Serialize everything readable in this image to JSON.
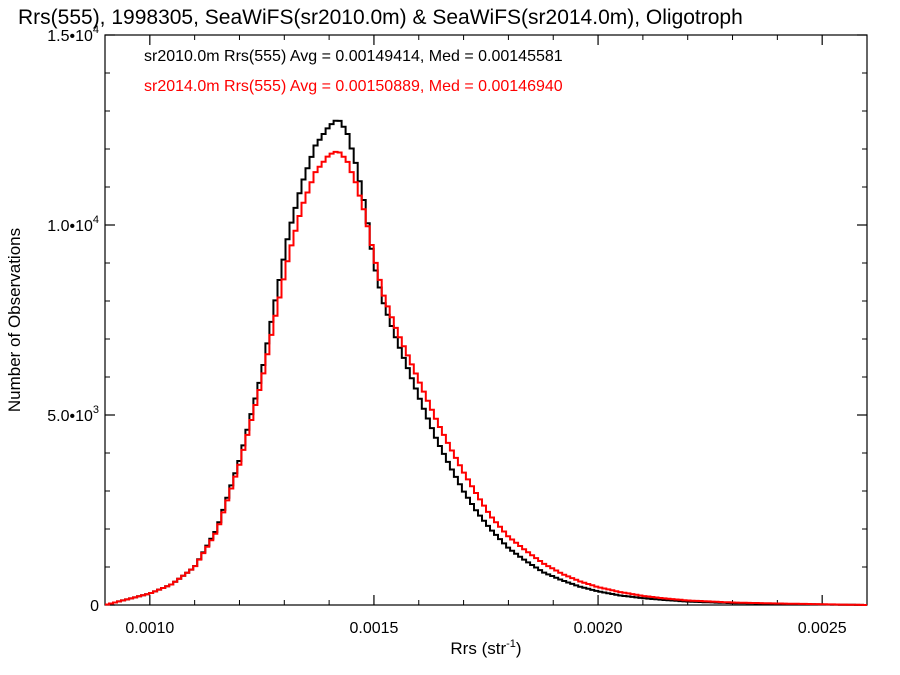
{
  "chart_data": {
    "type": "line",
    "title": "Rrs(555), 1998305, SeaWiFS(sr2010.0m) & SeaWiFS(sr2014.0m), Oligotroph",
    "xlabel": "Rrs (str",
    "xlabel_sup": "-1",
    "xlabel_end": ")",
    "ylabel": "Number of Observations",
    "xlim": [
      0.0009,
      0.0026
    ],
    "ylim": [
      0,
      15000
    ],
    "grid": false,
    "legend_position": "top-left",
    "x_ticks": [
      {
        "value": 0.001,
        "label": "0.0010"
      },
      {
        "value": 0.0015,
        "label": "0.0015"
      },
      {
        "value": 0.002,
        "label": "0.0020"
      },
      {
        "value": 0.0025,
        "label": "0.0025"
      }
    ],
    "y_ticks": [
      {
        "value": 0,
        "base": "0",
        "exp": ""
      },
      {
        "value": 5000,
        "base": "5.0•10",
        "exp": "3"
      },
      {
        "value": 10000,
        "base": "1.0•10",
        "exp": "4"
      },
      {
        "value": 15000,
        "base": "1.5•10",
        "exp": "4"
      }
    ],
    "series": [
      {
        "name": "sr2010.0m",
        "legend": "sr2010.0m Rrs(555) Avg = 0.00149414, Med = 0.00145581",
        "color": "#000000",
        "x": [
          0.0009,
          0.00095,
          0.001,
          0.00105,
          0.0011,
          0.00115,
          0.0012,
          0.00125,
          0.00128,
          0.00131,
          0.00134,
          0.00137,
          0.0014,
          0.00142,
          0.00144,
          0.00146,
          0.00148,
          0.0015,
          0.00152,
          0.00155,
          0.00158,
          0.00161,
          0.00164,
          0.00167,
          0.0017,
          0.00173,
          0.00176,
          0.0018,
          0.00184,
          0.00188,
          0.00192,
          0.00196,
          0.002,
          0.00205,
          0.0021,
          0.00215,
          0.0022,
          0.0023,
          0.0024,
          0.0025,
          0.0026
        ],
        "y": [
          0,
          150,
          300,
          550,
          1000,
          2000,
          3800,
          6100,
          8000,
          9800,
          11100,
          12100,
          12600,
          12800,
          12450,
          11600,
          10500,
          9000,
          8000,
          7000,
          6100,
          5200,
          4350,
          3650,
          3000,
          2450,
          2000,
          1500,
          1150,
          850,
          650,
          480,
          360,
          250,
          180,
          130,
          90,
          50,
          30,
          15,
          0
        ]
      },
      {
        "name": "sr2014.0m",
        "legend": "sr2014.0m Rrs(555) Avg = 0.00150889, Med = 0.00146940",
        "color": "#ff0000",
        "x": [
          0.0009,
          0.00095,
          0.001,
          0.00105,
          0.0011,
          0.00115,
          0.0012,
          0.00125,
          0.00128,
          0.00131,
          0.00134,
          0.00137,
          0.0014,
          0.00142,
          0.00144,
          0.00146,
          0.00148,
          0.0015,
          0.00152,
          0.00155,
          0.00158,
          0.00161,
          0.00164,
          0.00167,
          0.0017,
          0.00173,
          0.00176,
          0.0018,
          0.00184,
          0.00188,
          0.00192,
          0.00196,
          0.002,
          0.00205,
          0.0021,
          0.00215,
          0.0022,
          0.0023,
          0.0024,
          0.0025,
          0.0026
        ],
        "y": [
          0,
          150,
          300,
          550,
          1000,
          1950,
          3700,
          5900,
          7600,
          9200,
          10500,
          11400,
          11850,
          11950,
          11700,
          11100,
          10300,
          9200,
          8200,
          7250,
          6450,
          5650,
          4850,
          4150,
          3500,
          2900,
          2350,
          1800,
          1420,
          1080,
          820,
          620,
          470,
          340,
          240,
          170,
          120,
          65,
          40,
          20,
          0
        ]
      }
    ]
  }
}
